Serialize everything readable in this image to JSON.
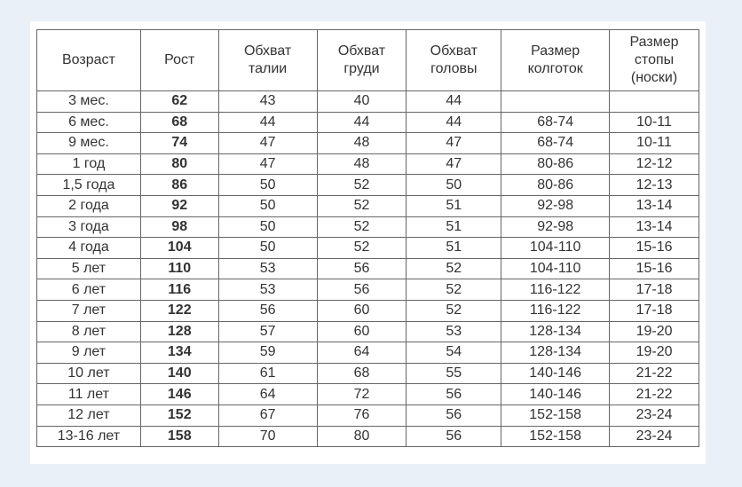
{
  "table": {
    "headers": [
      "Возраст",
      "Рост",
      "Обхват\nталии",
      "Обхват\nгруди",
      "Обхват\nголовы",
      "Размер\nколготок",
      "Размер\nстопы\n(носки)"
    ],
    "rows": [
      [
        "3 мес.",
        "62",
        "43",
        "40",
        "44",
        "",
        ""
      ],
      [
        "6 мес.",
        "68",
        "44",
        "44",
        "44",
        "68-74",
        "10-11"
      ],
      [
        "9 мес.",
        "74",
        "47",
        "48",
        "47",
        "68-74",
        "10-11"
      ],
      [
        "1 год",
        "80",
        "47",
        "48",
        "47",
        "80-86",
        "12-12"
      ],
      [
        "1,5 года",
        "86",
        "50",
        "52",
        "50",
        "80-86",
        "12-13"
      ],
      [
        "2 года",
        "92",
        "50",
        "52",
        "51",
        "92-98",
        "13-14"
      ],
      [
        "3 года",
        "98",
        "50",
        "52",
        "51",
        "92-98",
        "13-14"
      ],
      [
        "4 года",
        "104",
        "50",
        "52",
        "51",
        "104-110",
        "15-16"
      ],
      [
        "5 лет",
        "110",
        "53",
        "56",
        "52",
        "104-110",
        "15-16"
      ],
      [
        "6 лет",
        "116",
        "53",
        "56",
        "52",
        "116-122",
        "17-18"
      ],
      [
        "7 лет",
        "122",
        "56",
        "60",
        "52",
        "116-122",
        "17-18"
      ],
      [
        "8 лет",
        "128",
        "57",
        "60",
        "53",
        "128-134",
        "19-20"
      ],
      [
        "9 лет",
        "134",
        "59",
        "64",
        "54",
        "128-134",
        "19-20"
      ],
      [
        "10 лет",
        "140",
        "61",
        "68",
        "55",
        "140-146",
        "21-22"
      ],
      [
        "11 лет",
        "146",
        "64",
        "72",
        "56",
        "140-146",
        "21-22"
      ],
      [
        "12 лет",
        "152",
        "67",
        "76",
        "56",
        "152-158",
        "23-24"
      ],
      [
        "13-16 лет",
        "158",
        "70",
        "80",
        "56",
        "152-158",
        "23-24"
      ]
    ]
  }
}
